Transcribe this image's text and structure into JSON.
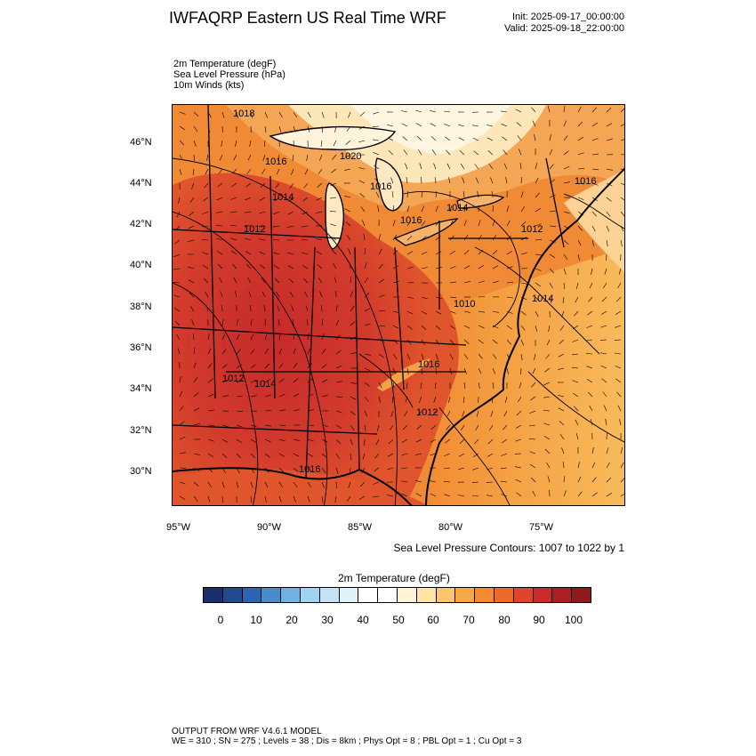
{
  "header": {
    "title": "IWFAQRP Eastern US Real Time WRF",
    "init": "Init: 2025-09-17_00:00:00",
    "valid": "Valid: 2025-09-18_22:00:00"
  },
  "fields": [
    "2m Temperature   (degF)",
    "Sea Level Pressure   (hPa)",
    "10m Winds   (kts)"
  ],
  "map": {
    "lat_labels": [
      "46°N",
      "44°N",
      "42°N",
      "40°N",
      "38°N",
      "36°N",
      "34°N",
      "32°N",
      "30°N"
    ],
    "lon_labels": [
      "95°W",
      "90°W",
      "85°W",
      "80°W",
      "75°W"
    ],
    "isobar_labels": [
      "1018",
      "1016",
      "1014",
      "1012",
      "1020",
      "1016",
      "1014",
      "1016",
      "1012",
      "1016",
      "1010",
      "1014",
      "1012",
      "1016",
      "1014",
      "1012",
      "1016"
    ]
  },
  "contour_note": "Sea Level Pressure Contours: 1007 to 1022 by 1",
  "colorbar": {
    "title": "2m Temperature  (degF)",
    "ticks": [
      "0",
      "10",
      "20",
      "30",
      "40",
      "50",
      "60",
      "70",
      "80",
      "90",
      "100"
    ],
    "colors": [
      "#1b2f6b",
      "#1f4a8f",
      "#2b66b3",
      "#4a8bcc",
      "#72b2e2",
      "#9fd3f0",
      "#c2e3f5",
      "#e0f1fa",
      "#ffffff",
      "#ffffff",
      "#fff5d6",
      "#ffe4a3",
      "#fcc56b",
      "#f9a843",
      "#f58a30",
      "#ef6a28",
      "#e0442a",
      "#c92a2a",
      "#ab1e22",
      "#8f1a1c"
    ]
  },
  "footer": {
    "line1": "OUTPUT FROM WRF V4.6.1 MODEL",
    "line2": "WE = 310 ; SN = 275 ; Levels = 38 ; Dis = 8km ; Phys Opt = 8 ; PBL Opt = 1 ; Cu Opt = 3"
  }
}
